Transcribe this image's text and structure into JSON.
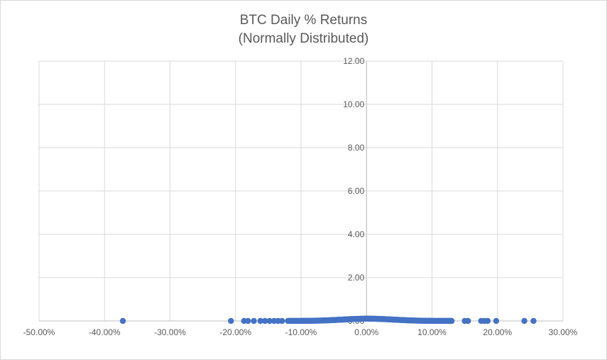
{
  "chart_data": {
    "type": "scatter",
    "title_lines": [
      "BTC Daily % Returns",
      "(Normally Distributed)"
    ],
    "xlabel": "",
    "ylabel": "",
    "xlim": [
      -0.5,
      0.3
    ],
    "ylim": [
      0,
      12
    ],
    "x_ticks": [
      -0.5,
      -0.4,
      -0.3,
      -0.2,
      -0.1,
      0.0,
      0.1,
      0.2,
      0.3
    ],
    "x_tick_labels": [
      "-50.00%",
      "-40.00%",
      "-30.00%",
      "-20.00%",
      "-10.00%",
      "0.00%",
      "10.00%",
      "20.00%",
      "30.00%"
    ],
    "y_ticks": [
      0,
      2,
      4,
      6,
      8,
      10,
      12
    ],
    "y_tick_labels": [
      "0.00",
      "2.00",
      "4.00",
      "6.00",
      "8.00",
      "10.00",
      "12.00"
    ],
    "grid": true,
    "legend": "none",
    "marker_color": "#4472c4",
    "distribution": {
      "mean": 0.002,
      "std_dev": 0.0385,
      "x_min": -0.12,
      "x_max": 0.13,
      "point_count": 260
    },
    "outliers_x": [
      -0.372,
      -0.207,
      -0.187,
      -0.181,
      -0.172,
      -0.162,
      -0.155,
      -0.148,
      -0.141,
      -0.135,
      -0.129,
      0.15,
      0.155,
      0.175,
      0.18,
      0.185,
      0.198,
      0.241,
      0.255
    ]
  }
}
